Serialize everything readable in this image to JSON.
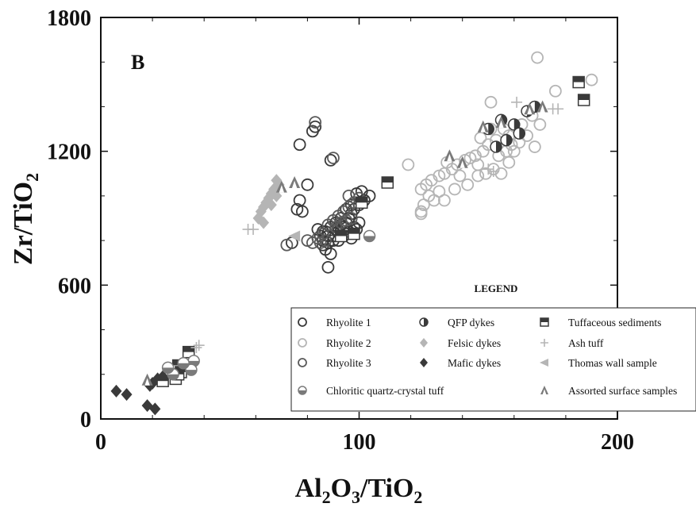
{
  "chart_data": {
    "type": "scatter",
    "panel_label": "B",
    "xlabel": "Al2O3/TiO2",
    "ylabel": "Zr/TiO2",
    "xlim": [
      0,
      200
    ],
    "ylim": [
      0,
      1800
    ],
    "xticks": [
      "0",
      "100",
      "200"
    ],
    "yticks": [
      "0",
      "600",
      "1200",
      "1800"
    ],
    "x_title": {
      "main1": "Al",
      "sub1": "2",
      "main2": "O",
      "sub2": "3",
      "main3": "/TiO",
      "sub3": "2"
    },
    "y_title": {
      "main": "Zr/TiO",
      "sub": "2"
    },
    "legend_title": "LEGEND",
    "grid": false,
    "legend_placement": "bottom-right",
    "colors": {
      "dark": "#3a3a3a",
      "light": "#b5b5b5",
      "mid": "#7a7a7a",
      "axis": "#111111"
    },
    "series": [
      {
        "name": "Rhyolite 1",
        "marker": "circle-open",
        "color": "#3a3a3a",
        "points": [
          [
            83,
            1310
          ],
          [
            82,
            1290
          ],
          [
            77,
            1230
          ],
          [
            89,
            1160
          ],
          [
            80,
            1050
          ],
          [
            77,
            980
          ],
          [
            76,
            940
          ],
          [
            78,
            930
          ],
          [
            86,
            800
          ],
          [
            88,
            790
          ],
          [
            84,
            850
          ],
          [
            86,
            780
          ],
          [
            87,
            760
          ],
          [
            89,
            740
          ],
          [
            88,
            680
          ],
          [
            74,
            790
          ],
          [
            90,
            820
          ],
          [
            92,
            840
          ],
          [
            94,
            860
          ],
          [
            95,
            880
          ],
          [
            96,
            900
          ],
          [
            97,
            920
          ],
          [
            98,
            940
          ],
          [
            100,
            960
          ],
          [
            102,
            980
          ],
          [
            104,
            1000
          ],
          [
            99,
            1010
          ],
          [
            101,
            1020
          ],
          [
            91,
            850
          ],
          [
            93,
            870
          ],
          [
            95,
            830
          ],
          [
            97,
            810
          ],
          [
            99,
            850
          ],
          [
            85,
            820
          ],
          [
            87,
            840
          ],
          [
            89,
            860
          ],
          [
            91,
            880
          ],
          [
            93,
            900
          ],
          [
            95,
            940
          ],
          [
            97,
            960
          ],
          [
            92,
            800
          ],
          [
            94,
            820
          ],
          [
            96,
            840
          ],
          [
            98,
            860
          ],
          [
            100,
            880
          ],
          [
            90,
            800
          ],
          [
            88,
            820
          ],
          [
            86,
            840
          ]
        ]
      },
      {
        "name": "Rhyolite 2",
        "marker": "circle-open",
        "color": "#b5b5b5",
        "points": [
          [
            169,
            1620
          ],
          [
            190,
            1520
          ],
          [
            176,
            1470
          ],
          [
            151,
            1420
          ],
          [
            167,
            1360
          ],
          [
            163,
            1320
          ],
          [
            156,
            1300
          ],
          [
            158,
            1270
          ],
          [
            153,
            1250
          ],
          [
            150,
            1230
          ],
          [
            148,
            1200
          ],
          [
            145,
            1180
          ],
          [
            143,
            1170
          ],
          [
            141,
            1160
          ],
          [
            138,
            1140
          ],
          [
            136,
            1120
          ],
          [
            133,
            1100
          ],
          [
            131,
            1090
          ],
          [
            128,
            1070
          ],
          [
            126,
            1050
          ],
          [
            124,
            1030
          ],
          [
            127,
            1000
          ],
          [
            129,
            980
          ],
          [
            131,
            1020
          ],
          [
            125,
            960
          ],
          [
            124,
            930
          ],
          [
            124,
            920
          ],
          [
            119,
            1140
          ],
          [
            134,
            1150
          ],
          [
            146,
            1140
          ],
          [
            152,
            1120
          ],
          [
            155,
            1100
          ],
          [
            158,
            1150
          ],
          [
            160,
            1200
          ],
          [
            162,
            1240
          ],
          [
            165,
            1270
          ],
          [
            170,
            1320
          ],
          [
            168,
            1220
          ],
          [
            147,
            1260
          ],
          [
            151,
            1300
          ],
          [
            149,
            1100
          ],
          [
            146,
            1090
          ],
          [
            142,
            1050
          ],
          [
            137,
            1030
          ],
          [
            133,
            980
          ],
          [
            139,
            1090
          ],
          [
            154,
            1180
          ],
          [
            157,
            1200
          ],
          [
            159,
            1230
          ]
        ]
      },
      {
        "name": "Rhyolite 3",
        "marker": "circle-open",
        "color": "#5a5a5a",
        "points": [
          [
            83,
            1330
          ],
          [
            90,
            1170
          ],
          [
            72,
            780
          ],
          [
            80,
            800
          ],
          [
            82,
            790
          ],
          [
            84,
            810
          ],
          [
            86,
            830
          ],
          [
            88,
            870
          ],
          [
            90,
            890
          ],
          [
            92,
            910
          ],
          [
            94,
            930
          ],
          [
            96,
            950
          ],
          [
            98,
            970
          ],
          [
            100,
            990
          ],
          [
            96,
            1000
          ],
          [
            93,
            880
          ],
          [
            95,
            890
          ],
          [
            97,
            900
          ],
          [
            91,
            860
          ],
          [
            87,
            800
          ],
          [
            85,
            790
          ]
        ]
      },
      {
        "name": "QFP dykes",
        "marker": "circle-half",
        "color": "#3a3a3a",
        "points": [
          [
            155,
            1340
          ],
          [
            160,
            1320
          ],
          [
            165,
            1380
          ],
          [
            157,
            1250
          ],
          [
            162,
            1280
          ],
          [
            168,
            1400
          ],
          [
            150,
            1300
          ],
          [
            153,
            1220
          ]
        ]
      },
      {
        "name": "Felsic dykes",
        "marker": "diamond",
        "color": "#b5b5b5",
        "points": [
          [
            68,
            1070
          ],
          [
            69,
            1050
          ],
          [
            67,
            1030
          ],
          [
            66,
            1010
          ],
          [
            65,
            990
          ],
          [
            64,
            970
          ],
          [
            63,
            950
          ],
          [
            62,
            930
          ],
          [
            61,
            900
          ],
          [
            63,
            880
          ],
          [
            66,
            960
          ],
          [
            68,
            1000
          ]
        ]
      },
      {
        "name": "Mafic dykes",
        "marker": "diamond",
        "color": "#3a3a3a",
        "points": [
          [
            6,
            125
          ],
          [
            10,
            110
          ],
          [
            18,
            60
          ],
          [
            21,
            45
          ],
          [
            20,
            160
          ],
          [
            22,
            180
          ],
          [
            24,
            190
          ],
          [
            19,
            150
          ]
        ]
      },
      {
        "name": "Tuffaceous sediments",
        "marker": "square-half",
        "color": "#3a3a3a",
        "points": [
          [
            185,
            1510
          ],
          [
            187,
            1430
          ],
          [
            111,
            1060
          ],
          [
            101,
            970
          ],
          [
            98,
            830
          ],
          [
            93,
            820
          ],
          [
            30,
            240
          ],
          [
            31,
            210
          ],
          [
            34,
            300
          ],
          [
            29,
            180
          ],
          [
            24,
            170
          ],
          [
            30,
            200
          ]
        ]
      },
      {
        "name": "Ash tuff",
        "marker": "plus",
        "color": "#b5b5b5",
        "points": [
          [
            57,
            850
          ],
          [
            59,
            850
          ],
          [
            38,
            330
          ],
          [
            37,
            320
          ],
          [
            150,
            1120
          ],
          [
            152,
            1110
          ],
          [
            175,
            1390
          ],
          [
            177,
            1390
          ],
          [
            161,
            1420
          ]
        ]
      },
      {
        "name": "Thomas wall sample",
        "marker": "triangle-left",
        "color": "#b5b5b5",
        "points": [
          [
            75,
            820
          ]
        ]
      },
      {
        "name": "Chloritic quartz-crystal tuff",
        "marker": "circle-half-h",
        "color": "#7a7a7a",
        "points": [
          [
            104,
            820
          ],
          [
            36,
            260
          ],
          [
            35,
            220
          ],
          [
            28,
            200
          ],
          [
            32,
            250
          ],
          [
            26,
            230
          ]
        ]
      },
      {
        "name": "Assorted surface samples",
        "marker": "triangle",
        "color": "#7a7a7a",
        "points": [
          [
            75,
            1060
          ],
          [
            70,
            1040
          ],
          [
            135,
            1180
          ],
          [
            148,
            1310
          ],
          [
            155,
            1330
          ],
          [
            166,
            1390
          ],
          [
            171,
            1400
          ],
          [
            140,
            1150
          ],
          [
            18,
            175
          ]
        ]
      }
    ],
    "legend": [
      {
        "label": "Rhyolite 1",
        "marker": "circle-open",
        "color": "#3a3a3a"
      },
      {
        "label": "QFP dykes",
        "marker": "circle-half",
        "color": "#3a3a3a"
      },
      {
        "label": "Tuffaceous sediments",
        "marker": "square-half",
        "color": "#3a3a3a"
      },
      {
        "label": "Rhyolite 2",
        "marker": "circle-open",
        "color": "#b5b5b5"
      },
      {
        "label": "Felsic dykes",
        "marker": "diamond",
        "color": "#b5b5b5"
      },
      {
        "label": "Ash tuff",
        "marker": "plus",
        "color": "#b5b5b5"
      },
      {
        "label": "Rhyolite 3",
        "marker": "circle-open",
        "color": "#5a5a5a"
      },
      {
        "label": "Mafic dykes",
        "marker": "diamond",
        "color": "#3a3a3a"
      },
      {
        "label": "Thomas wall sample",
        "marker": "triangle-left",
        "color": "#b5b5b5"
      },
      {
        "label": "Chloritic quartz-crystal tuff",
        "marker": "circle-half-h",
        "color": "#7a7a7a"
      },
      {
        "label": "Assorted surface samples",
        "marker": "triangle",
        "color": "#7a7a7a"
      }
    ]
  }
}
